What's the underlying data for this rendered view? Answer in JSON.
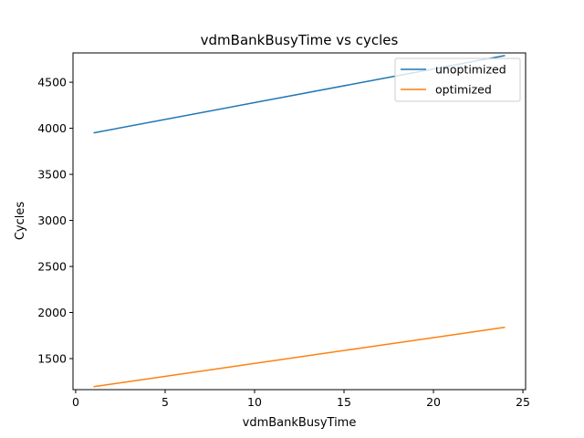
{
  "chart_data": {
    "type": "line",
    "title": "vdmBankBusyTime vs cycles",
    "xlabel": "vdmBankBusyTime",
    "ylabel": "Cycles",
    "xlim": [
      -0.15,
      25.15
    ],
    "ylim": [
      1163,
      4818
    ],
    "xticks": [
      0,
      5,
      10,
      15,
      20,
      25
    ],
    "yticks": [
      1500,
      2000,
      2500,
      3000,
      3500,
      4000,
      4500
    ],
    "grid": false,
    "legend_position": "top-right",
    "series": [
      {
        "name": "unoptimized",
        "color": "#1f77b4",
        "x": [
          1,
          24
        ],
        "y": [
          3950,
          4790
        ]
      },
      {
        "name": "optimized",
        "color": "#ff7f0e",
        "x": [
          1,
          24
        ],
        "y": [
          1195,
          1840
        ]
      }
    ]
  }
}
